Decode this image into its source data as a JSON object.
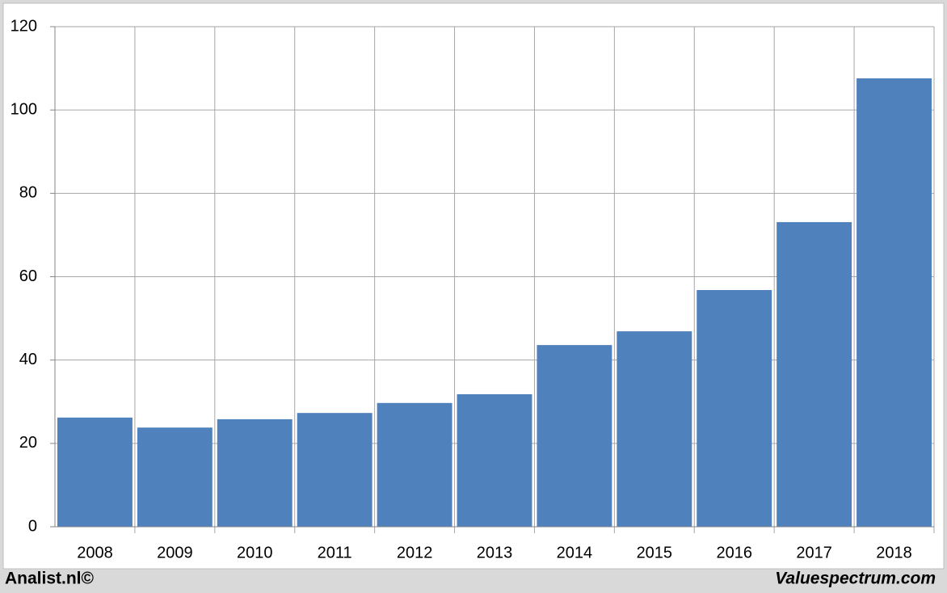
{
  "chart_data": {
    "type": "bar",
    "categories": [
      "2008",
      "2009",
      "2010",
      "2011",
      "2012",
      "2013",
      "2014",
      "2015",
      "2016",
      "2017",
      "2018"
    ],
    "values": [
      26.2,
      23.8,
      25.8,
      27.3,
      29.7,
      31.8,
      43.6,
      46.9,
      56.8,
      73.1,
      107.6
    ],
    "color": "#4f81bd",
    "ylim": [
      0,
      120
    ],
    "yticks": [
      0,
      20,
      40,
      60,
      80,
      100,
      120
    ],
    "grid": true,
    "source_left": "Analist.nl©",
    "source_right": "Valuespectrum.com"
  }
}
